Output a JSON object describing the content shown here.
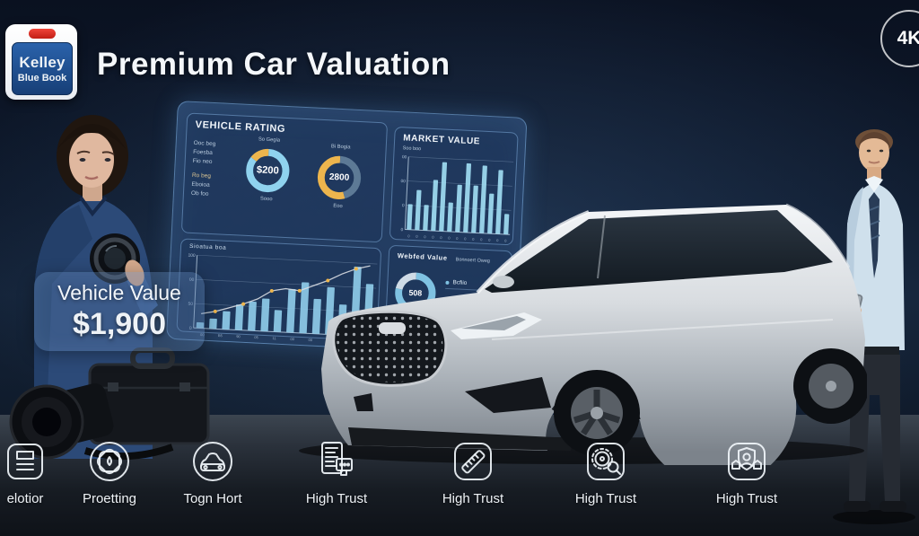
{
  "badge_4k": "4K",
  "logo": {
    "line1": "Kelley",
    "line2": "Blue Book"
  },
  "header": {
    "title": "Premium Car Valuation"
  },
  "value_box": {
    "label": "Vehicle Value",
    "amount": "$1,900"
  },
  "dashboard": {
    "vehicle_rating": {
      "title": "VEHICLE RATING",
      "side_labels": [
        "Ooc beg",
        "Foesba",
        "Fio neo",
        "Ro beg",
        "Eboioa",
        "Ob foo"
      ],
      "donut1": {
        "top_label": "So Gegia",
        "bottom_label": "Sooo"
      },
      "donut2": {
        "top_label": "Bi Bogia",
        "bottom_label": "Eoo"
      }
    },
    "market_value": {
      "title": "MARKET VALUE",
      "sub_label": "Soo boo"
    },
    "trend": {
      "title": "Sioatua boa"
    },
    "wanted_value": {
      "title": "Webfed Value",
      "right_title": "Bonnoert Oweg",
      "legend": [
        "Bcfiio",
        "Mocnn"
      ]
    }
  },
  "bottom_row": [
    {
      "icon": "storage-box-icon",
      "label": "elotior"
    },
    {
      "icon": "seal-badge-icon",
      "label": "Proetting"
    },
    {
      "icon": "car-circle-icon",
      "label": "Togn Hort"
    },
    {
      "icon": "document-plug-icon",
      "label": "High Trust"
    },
    {
      "icon": "ruler-icon",
      "label": "High Trust"
    },
    {
      "icon": "gear-magnifier-icon",
      "label": "High Trust"
    },
    {
      "icon": "shield-group-icon",
      "label": "High Trust"
    }
  ],
  "colors": {
    "accent_cyan": "#8fd2ee",
    "accent_yellow": "#edb54d",
    "panel_border": "#7fb3e0",
    "kbb_blue": "#1d4e8f",
    "kbb_red": "#d92b20"
  },
  "chart_data": [
    {
      "type": "pie",
      "donut": true,
      "title": "So Gegia",
      "center_label": "$200",
      "values": [
        15,
        85
      ],
      "colors": [
        "#edb54d",
        "#8fd2ee"
      ]
    },
    {
      "type": "pie",
      "donut": true,
      "title": "Bi Bogia",
      "center_label": "2800",
      "values": [
        55,
        45
      ],
      "colors": [
        "#edb54d",
        "#5d7a96"
      ]
    },
    {
      "type": "bar",
      "title": "MARKET VALUE",
      "values": [
        35,
        55,
        35,
        70,
        95,
        40,
        65,
        95,
        65,
        93,
        55,
        88,
        28
      ],
      "color": "#9fdcf2",
      "ylim": [
        0,
        100
      ],
      "grid": true,
      "y_ticks": [
        "00",
        "00",
        "0",
        "0"
      ],
      "x_ticks": [
        "0",
        "0",
        "0",
        "0",
        "0",
        "0",
        "0",
        "0",
        "0",
        "0",
        "0",
        "0",
        "0"
      ]
    },
    {
      "type": "bar+line",
      "title": "Sioatua boa",
      "bar_values": [
        8,
        14,
        25,
        35,
        40,
        45,
        30,
        60,
        70,
        48,
        65,
        42,
        95,
        72
      ],
      "line_values": [
        20,
        24,
        30,
        36,
        44,
        56,
        60,
        58,
        66,
        74,
        84,
        92,
        97
      ],
      "bar_color": "#8ecbe8",
      "line_color": "#d8dde2",
      "marker_color": "#edb54d",
      "ylim": [
        0,
        100
      ],
      "grid": true,
      "y_ticks": [
        "100",
        "00",
        "50",
        "0"
      ],
      "x_ticks": [
        "00",
        "B5",
        "90",
        "05",
        "11",
        "00",
        "00",
        "05",
        "0",
        "0"
      ]
    },
    {
      "type": "pie",
      "donut": true,
      "title": "Webfed Value",
      "center_label": "508",
      "values": [
        22,
        78
      ],
      "colors": [
        "#cfdbe6",
        "#7fc2e2"
      ]
    }
  ]
}
